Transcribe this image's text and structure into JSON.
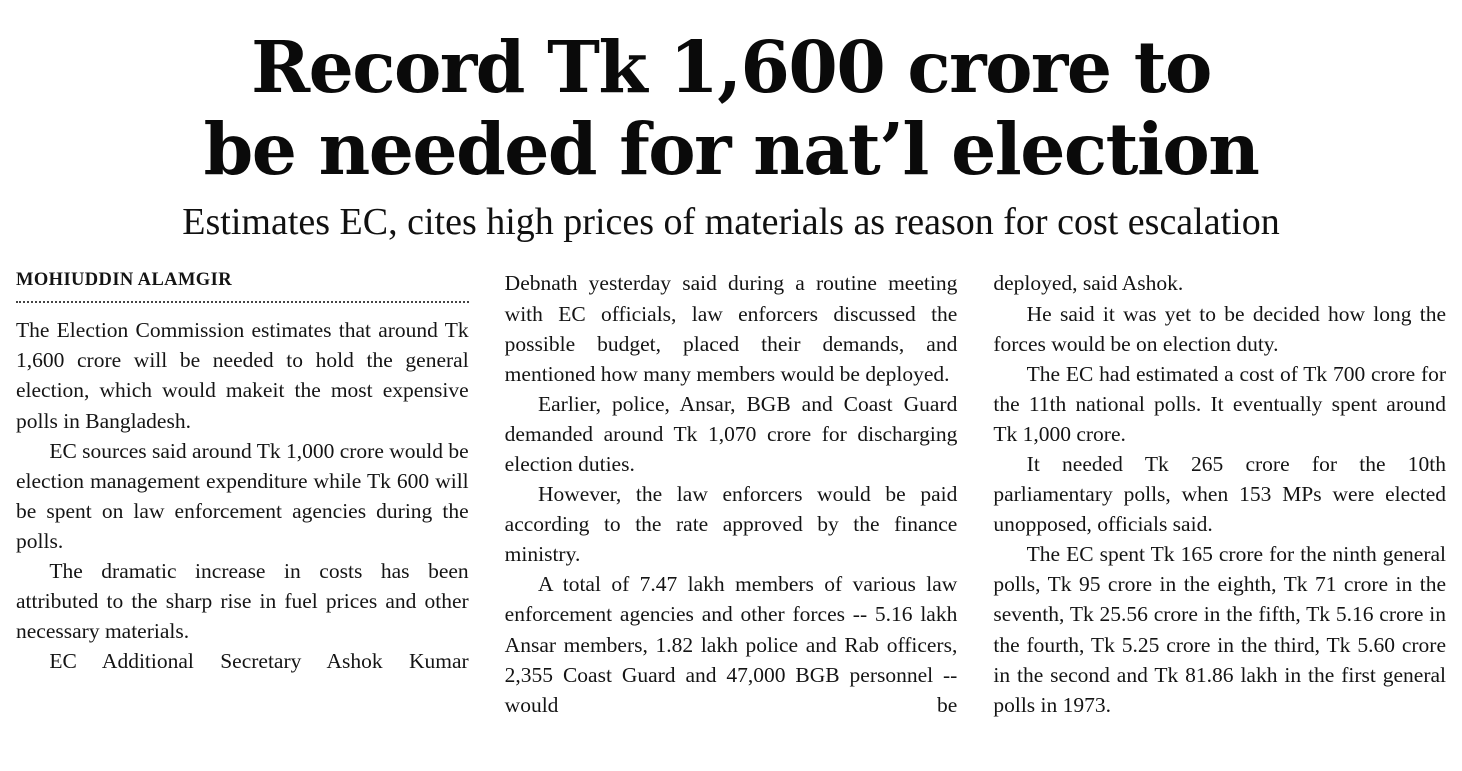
{
  "article": {
    "headline_line1": "Record Tk 1,600 crore to",
    "headline_line2": "be needed for nat’l election",
    "subheadline": "Estimates EC, cites high prices of materials as reason for cost escalation",
    "byline": "MOHIUDDIN ALAMGIR",
    "columns": [
      {
        "paragraphs": [
          "The Election Commission estimates that around Tk 1,600 crore will be needed to hold the general election, which would makeit the most expensive polls in Bangladesh.",
          "EC sources said around Tk 1,000 crore would be election management expenditure while Tk 600 will be spent on law enforcement agencies during the polls.",
          "The dramatic increase in costs has been attributed to the sharp rise in fuel prices and other necessary materials.",
          "EC Additional Secretary Ashok Kumar"
        ]
      },
      {
        "paragraphs": [
          "Debnath yesterday said during a routine meeting with EC officials, law enforcers discussed the possible budget, placed their demands, and mentioned how many members would be deployed.",
          "Earlier, police, Ansar, BGB and Coast Guard demanded around Tk 1,070 crore for discharging election duties.",
          "However, the law enforcers would be paid according to the rate approved by the finance ministry.",
          "A total of 7.47 lakh members of various law enforcement agencies and other forces -- 5.16 lakh Ansar members, 1.82 lakh police and Rab officers, 2,355 Coast Guard and 47,000 BGB personnel -- would be"
        ]
      },
      {
        "paragraphs": [
          "deployed, said Ashok.",
          "He said it was yet to be decided how long the forces would be on election duty.",
          "The EC had estimated a cost of Tk 700 crore for the 11th national polls. It eventually spent around Tk 1,000 crore.",
          "It needed Tk 265 crore for the 10th parliamentary polls, when 153 MPs were elected unopposed, officials said.",
          "The EC spent Tk 165 crore for the ninth general polls, Tk 95 crore in the eighth, Tk 71 crore in the seventh, Tk 25.56 crore in the fifth, Tk 5.16 crore in the fourth, Tk 5.25 crore in the third, Tk 5.60 crore in the second and Tk 81.86 lakh in the first general polls in 1973."
        ]
      }
    ]
  }
}
